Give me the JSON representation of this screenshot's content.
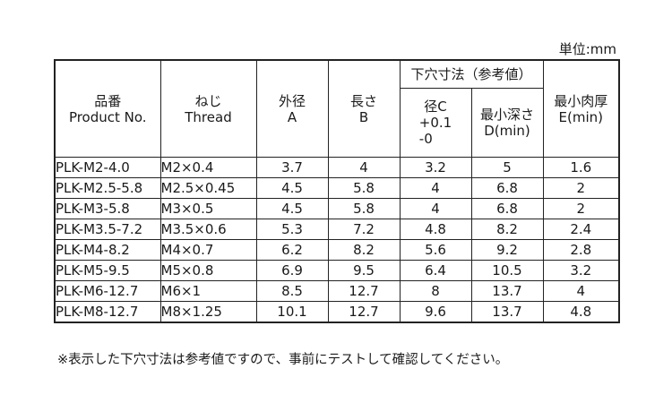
{
  "unit_label": "単位:mm",
  "headers": {
    "product_jp": "品番",
    "product_en": "Product No.",
    "thread_jp": "ねじ",
    "thread_en": "Thread",
    "outer_jp": "外径",
    "outer_en": "A",
    "length_jp": "長さ",
    "length_en": "B",
    "hole_group": "下穴寸法（参考値）",
    "hole_dia_jp": "径C",
    "hole_dia_tol_plus": "+0.1",
    "hole_dia_tol_minus": "-0",
    "hole_depth_jp": "最小深さ",
    "hole_depth_en": "D(min)",
    "wall_jp": "最小肉厚",
    "wall_en": "E(min)"
  },
  "rows": [
    {
      "product": "PLK-M2-4.0",
      "thread": "M2×0.4",
      "a": "3.7",
      "b": "4",
      "c": "3.2",
      "d": "5",
      "e": "1.6"
    },
    {
      "product": "PLK-M2.5-5.8",
      "thread": "M2.5×0.45",
      "a": "4.5",
      "b": "5.8",
      "c": "4",
      "d": "6.8",
      "e": "2"
    },
    {
      "product": "PLK-M3-5.8",
      "thread": "M3×0.5",
      "a": "4.5",
      "b": "5.8",
      "c": "4",
      "d": "6.8",
      "e": "2"
    },
    {
      "product": "PLK-M3.5-7.2",
      "thread": "M3.5×0.6",
      "a": "5.3",
      "b": "7.2",
      "c": "4.8",
      "d": "8.2",
      "e": "2.4"
    },
    {
      "product": "PLK-M4-8.2",
      "thread": "M4×0.7",
      "a": "6.2",
      "b": "8.2",
      "c": "5.6",
      "d": "9.2",
      "e": "2.8"
    },
    {
      "product": "PLK-M5-9.5",
      "thread": "M5×0.8",
      "a": "6.9",
      "b": "9.5",
      "c": "6.4",
      "d": "10.5",
      "e": "3.2"
    },
    {
      "product": "PLK-M6-12.7",
      "thread": "M6×1",
      "a": "8.5",
      "b": "12.7",
      "c": "8",
      "d": "13.7",
      "e": "4"
    },
    {
      "product": "PLK-M8-12.7",
      "thread": "M8×1.25",
      "a": "10.1",
      "b": "12.7",
      "c": "9.6",
      "d": "13.7",
      "e": "4.8"
    }
  ],
  "note": "※表示した下穴寸法は参考値ですので、事前にテストして確認してください。"
}
